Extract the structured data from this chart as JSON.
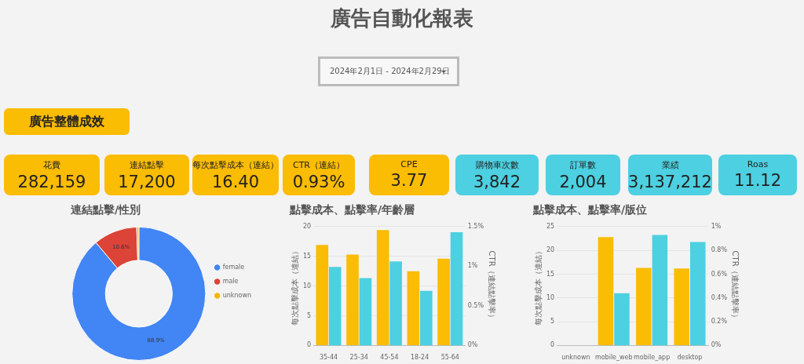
{
  "chart_data": [
    {
      "type": "other",
      "title": "廣告自動化報表",
      "annotations": [
        "2024年2月1日 - 2024年2月29日",
        "廣告整體成效"
      ],
      "categories": [
        "花費",
        "連結點擊",
        "每次點擊成本（連結）",
        "CTR（連結）",
        "CPE",
        "購物車次數",
        "訂單數",
        "業績",
        "Roas"
      ],
      "values": [
        282159,
        17200,
        16.4,
        0.93,
        3.77,
        3842,
        2004,
        3137212,
        11.12
      ],
      "value_labels": [
        "282,159",
        "17,200",
        "16.40",
        "0.93%",
        "3.77",
        "3,842",
        "2,004",
        "3,137,212",
        "11.12"
      ],
      "colors": [
        "#fbbc04",
        "#fbbc04",
        "#fbbc04",
        "#fbbc04",
        "#fbbc04",
        "#4dd0e1",
        "#4dd0e1",
        "#4dd0e1",
        "#4dd0e1"
      ]
    },
    {
      "type": "donut",
      "title": "連結點擊/性別",
      "categories": [
        "female",
        "male",
        "unknown"
      ],
      "values": [
        88.9,
        10.6,
        0.5
      ],
      "colors": [
        "#4285f4",
        "#db4437",
        "#f4b400"
      ],
      "value_labels": [
        "88.9%",
        "10.6%",
        null
      ],
      "legend": "right"
    },
    {
      "type": "bar",
      "title": "點擊成本、點擊率/年齡層",
      "categories": [
        "35-44",
        "25-34",
        "45-54",
        "18-24",
        "55-64"
      ],
      "ylabel": "每次點擊成本（連結）",
      "y2label": "CTR（連結點擊率）",
      "ylim": [
        0,
        20
      ],
      "yticks": [
        0,
        5,
        10,
        15,
        20
      ],
      "y2lim": [
        0,
        1.5
      ],
      "y2ticks": [
        {
          "value": 0,
          "label": "0%"
        },
        {
          "value": 0.5,
          "label": "0.5%"
        },
        {
          "value": 1,
          "label": "1%"
        },
        {
          "value": 1.5,
          "label": "1.5%"
        }
      ],
      "grid": "y",
      "legend": false,
      "series": [
        {
          "color": "#fbbc04",
          "values": [
            16.9,
            15.3,
            19.4,
            12.5,
            14.6
          ]
        },
        {
          "color": "#4dd0e1",
          "axis": "y2",
          "values": [
            0.99,
            0.85,
            1.06,
            0.69,
            1.43
          ]
        }
      ]
    },
    {
      "type": "bar",
      "title": "點擊成本、點擊率/版位",
      "categories": [
        "unknown",
        "mobile_web",
        "mobile_app",
        "desktop"
      ],
      "ylabel": "每次點擊成本（連結）",
      "y2label": "CTR（連結點擊率）",
      "ylim": [
        0,
        25
      ],
      "yticks": [
        0,
        5,
        10,
        15,
        20,
        25
      ],
      "y2lim": [
        0,
        1
      ],
      "y2ticks": [
        {
          "value": 0,
          "label": "0%"
        },
        {
          "value": 0.2,
          "label": "0.2%"
        },
        {
          "value": 0.4,
          "label": "0.4%"
        },
        {
          "value": 0.6,
          "label": "0.6%"
        },
        {
          "value": 0.8,
          "label": "0.8%"
        },
        {
          "value": 1,
          "label": "1%"
        }
      ],
      "grid": "y",
      "legend": false,
      "series": [
        {
          "color": "#fbbc04",
          "values": [
            0,
            22.8,
            16.3,
            16.2
          ]
        },
        {
          "color": "#4dd0e1",
          "axis": "y2",
          "values": [
            0,
            0.44,
            0.93,
            0.87
          ]
        }
      ]
    }
  ]
}
